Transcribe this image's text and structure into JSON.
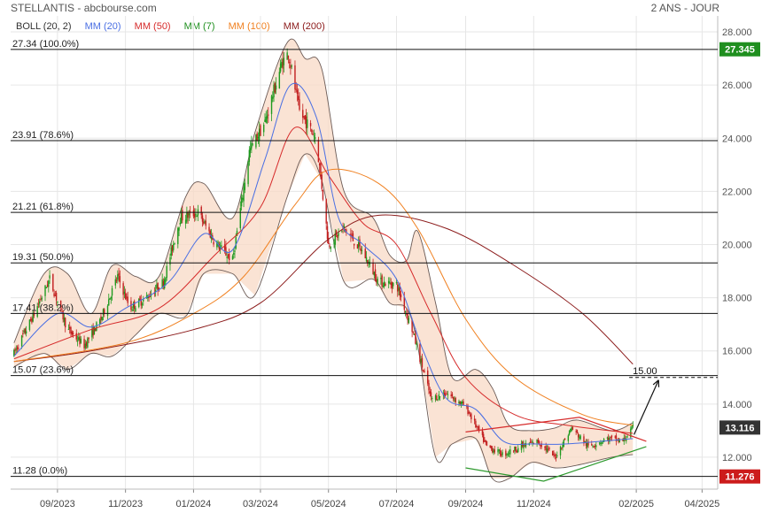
{
  "header": {
    "title": "STELLANTIS - abcbourse.com",
    "timeframe": "2 ANS - JOUR"
  },
  "legend": {
    "items": [
      {
        "label": "BOLL (20, 2)",
        "color": "#333333"
      },
      {
        "label": "MM (20)",
        "color": "#4a6fe3"
      },
      {
        "label": "MM (50)",
        "color": "#d62b2b"
      },
      {
        "label": "MM (7)",
        "color": "#1f8f1f"
      },
      {
        "label": "MM (100)",
        "color": "#f08020"
      },
      {
        "label": "MM (200)",
        "color": "#8b1a1a"
      }
    ]
  },
  "chart_data": {
    "type": "candlestick",
    "ylim": [
      10.8,
      28.6
    ],
    "y_ticks": [
      "28.000",
      "26.000",
      "24.000",
      "22.000",
      "20.000",
      "18.000",
      "16.000",
      "14.000",
      "12.000"
    ],
    "y_tick_values": [
      28,
      26,
      24,
      22,
      20,
      18,
      16,
      14,
      12
    ],
    "x_ticks": [
      "09/2023",
      "11/2023",
      "01/2024",
      "03/2024",
      "05/2024",
      "07/2024",
      "09/2024",
      "11/2024",
      "02/2025",
      "04/2025"
    ],
    "x_tick_dates": [
      "2023-09-01",
      "2023-11-01",
      "2024-01-01",
      "2024-03-01",
      "2024-05-01",
      "2024-07-01",
      "2024-09-01",
      "2024-11-01",
      "2025-02-01",
      "2025-04-01"
    ],
    "x_range": [
      "2023-07-21",
      "2025-04-15"
    ],
    "fib_levels": [
      {
        "label": "27.34  (100.0%)",
        "value": 27.34
      },
      {
        "label": "23.91  (78.6%)",
        "value": 23.91
      },
      {
        "label": "21.21  (61.8%)",
        "value": 21.21
      },
      {
        "label": "19.31  (50.0%)",
        "value": 19.31
      },
      {
        "label": "17.41  (38.2%)",
        "value": 17.41
      },
      {
        "label": "15.07  (23.6%)",
        "value": 15.07
      },
      {
        "label": "11.28  (0.0%)",
        "value": 11.28
      }
    ],
    "price_tags": [
      {
        "label": "27.345",
        "value": 27.345,
        "color": "#1f8f1f"
      },
      {
        "label": "13.116",
        "value": 13.116,
        "color": "#333333"
      },
      {
        "label": "11.276",
        "value": 11.276,
        "color": "#cc1b1b"
      }
    ],
    "target": {
      "label": "15.00",
      "value": 15.0,
      "date_start": "2025-02-01",
      "date_end": "2025-04-15"
    },
    "key_points": [
      {
        "date": "2023-07-24",
        "price": 15.9
      },
      {
        "date": "2023-08-10",
        "price": 17.3
      },
      {
        "date": "2023-08-25",
        "price": 18.7
      },
      {
        "date": "2023-09-10",
        "price": 16.8
      },
      {
        "date": "2023-09-25",
        "price": 16.2
      },
      {
        "date": "2023-10-10",
        "price": 17.2
      },
      {
        "date": "2023-10-25",
        "price": 18.8
      },
      {
        "date": "2023-11-05",
        "price": 17.6
      },
      {
        "date": "2023-11-20",
        "price": 18.0
      },
      {
        "date": "2023-12-05",
        "price": 18.6
      },
      {
        "date": "2023-12-20",
        "price": 21.0
      },
      {
        "date": "2024-01-05",
        "price": 21.2
      },
      {
        "date": "2024-01-20",
        "price": 20.1
      },
      {
        "date": "2024-02-05",
        "price": 19.4
      },
      {
        "date": "2024-02-20",
        "price": 23.5
      },
      {
        "date": "2024-03-05",
        "price": 24.6
      },
      {
        "date": "2024-03-20",
        "price": 26.8
      },
      {
        "date": "2024-03-26",
        "price": 27.2
      },
      {
        "date": "2024-04-05",
        "price": 25.0
      },
      {
        "date": "2024-04-20",
        "price": 24.0
      },
      {
        "date": "2024-05-01",
        "price": 20.0
      },
      {
        "date": "2024-05-15",
        "price": 20.6
      },
      {
        "date": "2024-06-01",
        "price": 19.7
      },
      {
        "date": "2024-06-15",
        "price": 18.6
      },
      {
        "date": "2024-07-01",
        "price": 18.5
      },
      {
        "date": "2024-07-15",
        "price": 16.8
      },
      {
        "date": "2024-08-01",
        "price": 14.2
      },
      {
        "date": "2024-08-15",
        "price": 14.4
      },
      {
        "date": "2024-09-01",
        "price": 13.9
      },
      {
        "date": "2024-09-20",
        "price": 12.4
      },
      {
        "date": "2024-10-05",
        "price": 12.1
      },
      {
        "date": "2024-10-20",
        "price": 12.4
      },
      {
        "date": "2024-11-05",
        "price": 12.6
      },
      {
        "date": "2024-11-20",
        "price": 12.0
      },
      {
        "date": "2024-12-05",
        "price": 13.1
      },
      {
        "date": "2024-12-20",
        "price": 12.4
      },
      {
        "date": "2025-01-05",
        "price": 12.7
      },
      {
        "date": "2025-01-20",
        "price": 12.6
      },
      {
        "date": "2025-01-29",
        "price": 13.1
      }
    ],
    "mm20": [
      {
        "date": "2023-07-24",
        "price": 15.8
      },
      {
        "date": "2023-09-01",
        "price": 17.4
      },
      {
        "date": "2023-10-01",
        "price": 16.9
      },
      {
        "date": "2023-11-01",
        "price": 17.6
      },
      {
        "date": "2023-12-10",
        "price": 18.6
      },
      {
        "date": "2024-01-10",
        "price": 20.4
      },
      {
        "date": "2024-02-05",
        "price": 19.8
      },
      {
        "date": "2024-03-05",
        "price": 23.2
      },
      {
        "date": "2024-03-28",
        "price": 26.0
      },
      {
        "date": "2024-04-20",
        "price": 24.8
      },
      {
        "date": "2024-05-10",
        "price": 21.0
      },
      {
        "date": "2024-06-01",
        "price": 20.0
      },
      {
        "date": "2024-07-01",
        "price": 18.7
      },
      {
        "date": "2024-07-25",
        "price": 16.0
      },
      {
        "date": "2024-08-15",
        "price": 14.2
      },
      {
        "date": "2024-09-10",
        "price": 13.8
      },
      {
        "date": "2024-10-05",
        "price": 12.6
      },
      {
        "date": "2024-11-01",
        "price": 12.5
      },
      {
        "date": "2024-12-01",
        "price": 12.5
      },
      {
        "date": "2025-01-29",
        "price": 12.7
      }
    ],
    "mm50": [
      {
        "date": "2023-07-24",
        "price": 15.7
      },
      {
        "date": "2023-10-01",
        "price": 16.8
      },
      {
        "date": "2023-12-01",
        "price": 17.6
      },
      {
        "date": "2024-01-20",
        "price": 19.6
      },
      {
        "date": "2024-03-01",
        "price": 21.4
      },
      {
        "date": "2024-04-01",
        "price": 24.4
      },
      {
        "date": "2024-05-01",
        "price": 22.6
      },
      {
        "date": "2024-06-01",
        "price": 20.8
      },
      {
        "date": "2024-07-01",
        "price": 20.0
      },
      {
        "date": "2024-08-01",
        "price": 17.4
      },
      {
        "date": "2024-09-01",
        "price": 15.0
      },
      {
        "date": "2024-10-15",
        "price": 13.6
      },
      {
        "date": "2024-12-01",
        "price": 13.2
      },
      {
        "date": "2025-01-29",
        "price": 12.9
      }
    ],
    "mm100": [
      {
        "date": "2023-07-24",
        "price": 15.6
      },
      {
        "date": "2023-11-01",
        "price": 16.3
      },
      {
        "date": "2024-01-01",
        "price": 17.4
      },
      {
        "date": "2024-02-15",
        "price": 18.8
      },
      {
        "date": "2024-04-01",
        "price": 21.5
      },
      {
        "date": "2024-05-01",
        "price": 22.8
      },
      {
        "date": "2024-06-15",
        "price": 22.3
      },
      {
        "date": "2024-07-20",
        "price": 20.6
      },
      {
        "date": "2024-09-01",
        "price": 17.2
      },
      {
        "date": "2024-10-15",
        "price": 15.0
      },
      {
        "date": "2024-12-15",
        "price": 13.6
      },
      {
        "date": "2025-01-29",
        "price": 13.2
      }
    ],
    "mm200": [
      {
        "date": "2023-07-24",
        "price": 15.6
      },
      {
        "date": "2023-10-01",
        "price": 16.0
      },
      {
        "date": "2024-01-01",
        "price": 16.8
      },
      {
        "date": "2024-03-01",
        "price": 17.8
      },
      {
        "date": "2024-05-01",
        "price": 20.2
      },
      {
        "date": "2024-06-15",
        "price": 21.1
      },
      {
        "date": "2024-08-15",
        "price": 20.6
      },
      {
        "date": "2024-10-15",
        "price": 19.2
      },
      {
        "date": "2024-12-15",
        "price": 17.4
      },
      {
        "date": "2025-01-29",
        "price": 15.5
      }
    ],
    "boll_upper": [
      {
        "date": "2023-07-24",
        "price": 16.3
      },
      {
        "date": "2023-08-20",
        "price": 18.9
      },
      {
        "date": "2023-09-10",
        "price": 18.9
      },
      {
        "date": "2023-10-01",
        "price": 17.4
      },
      {
        "date": "2023-10-20",
        "price": 19.2
      },
      {
        "date": "2023-11-10",
        "price": 18.8
      },
      {
        "date": "2023-12-01",
        "price": 18.8
      },
      {
        "date": "2023-12-25",
        "price": 21.8
      },
      {
        "date": "2024-01-10",
        "price": 22.3
      },
      {
        "date": "2024-02-05",
        "price": 21.0
      },
      {
        "date": "2024-02-25",
        "price": 24.2
      },
      {
        "date": "2024-03-25",
        "price": 27.6
      },
      {
        "date": "2024-04-10",
        "price": 27.0
      },
      {
        "date": "2024-04-25",
        "price": 26.6
      },
      {
        "date": "2024-05-15",
        "price": 22.0
      },
      {
        "date": "2024-06-10",
        "price": 21.0
      },
      {
        "date": "2024-06-25",
        "price": 19.6
      },
      {
        "date": "2024-07-10",
        "price": 19.4
      },
      {
        "date": "2024-07-20",
        "price": 20.5
      },
      {
        "date": "2024-08-05",
        "price": 17.8
      },
      {
        "date": "2024-08-20",
        "price": 15.0
      },
      {
        "date": "2024-09-10",
        "price": 15.3
      },
      {
        "date": "2024-09-25",
        "price": 14.6
      },
      {
        "date": "2024-10-10",
        "price": 13.2
      },
      {
        "date": "2024-10-30",
        "price": 13.0
      },
      {
        "date": "2024-11-20",
        "price": 13.1
      },
      {
        "date": "2024-12-10",
        "price": 13.4
      },
      {
        "date": "2025-01-10",
        "price": 13.0
      },
      {
        "date": "2025-01-29",
        "price": 13.3
      }
    ],
    "boll_lower": [
      {
        "date": "2023-07-24",
        "price": 15.4
      },
      {
        "date": "2023-08-20",
        "price": 15.9
      },
      {
        "date": "2023-09-10",
        "price": 15.3
      },
      {
        "date": "2023-10-01",
        "price": 15.9
      },
      {
        "date": "2023-10-20",
        "price": 15.8
      },
      {
        "date": "2023-11-10",
        "price": 16.6
      },
      {
        "date": "2023-12-01",
        "price": 17.4
      },
      {
        "date": "2023-12-25",
        "price": 17.3
      },
      {
        "date": "2024-01-10",
        "price": 18.9
      },
      {
        "date": "2024-02-05",
        "price": 18.9
      },
      {
        "date": "2024-02-25",
        "price": 18.1
      },
      {
        "date": "2024-03-25",
        "price": 21.8
      },
      {
        "date": "2024-04-10",
        "price": 23.4
      },
      {
        "date": "2024-04-25",
        "price": 22.4
      },
      {
        "date": "2024-05-15",
        "price": 18.6
      },
      {
        "date": "2024-06-10",
        "price": 18.7
      },
      {
        "date": "2024-06-25",
        "price": 17.8
      },
      {
        "date": "2024-07-10",
        "price": 17.6
      },
      {
        "date": "2024-07-20",
        "price": 16.2
      },
      {
        "date": "2024-08-05",
        "price": 12.0
      },
      {
        "date": "2024-08-20",
        "price": 12.5
      },
      {
        "date": "2024-09-10",
        "price": 12.7
      },
      {
        "date": "2024-09-25",
        "price": 11.2
      },
      {
        "date": "2024-10-10",
        "price": 11.2
      },
      {
        "date": "2024-10-30",
        "price": 11.8
      },
      {
        "date": "2024-11-20",
        "price": 11.6
      },
      {
        "date": "2024-12-10",
        "price": 11.7
      },
      {
        "date": "2025-01-10",
        "price": 12.0
      },
      {
        "date": "2025-01-29",
        "price": 12.1
      }
    ],
    "trendlines": [
      {
        "color": "#d62b2b",
        "points": [
          {
            "date": "2024-09-01",
            "price": 12.95
          },
          {
            "date": "2024-12-12",
            "price": 13.5
          },
          {
            "date": "2025-02-10",
            "price": 12.6
          }
        ]
      },
      {
        "color": "#2e9a2e",
        "points": [
          {
            "date": "2024-09-01",
            "price": 11.6
          },
          {
            "date": "2024-11-10",
            "price": 11.1
          },
          {
            "date": "2025-02-10",
            "price": 12.4
          }
        ]
      }
    ]
  }
}
